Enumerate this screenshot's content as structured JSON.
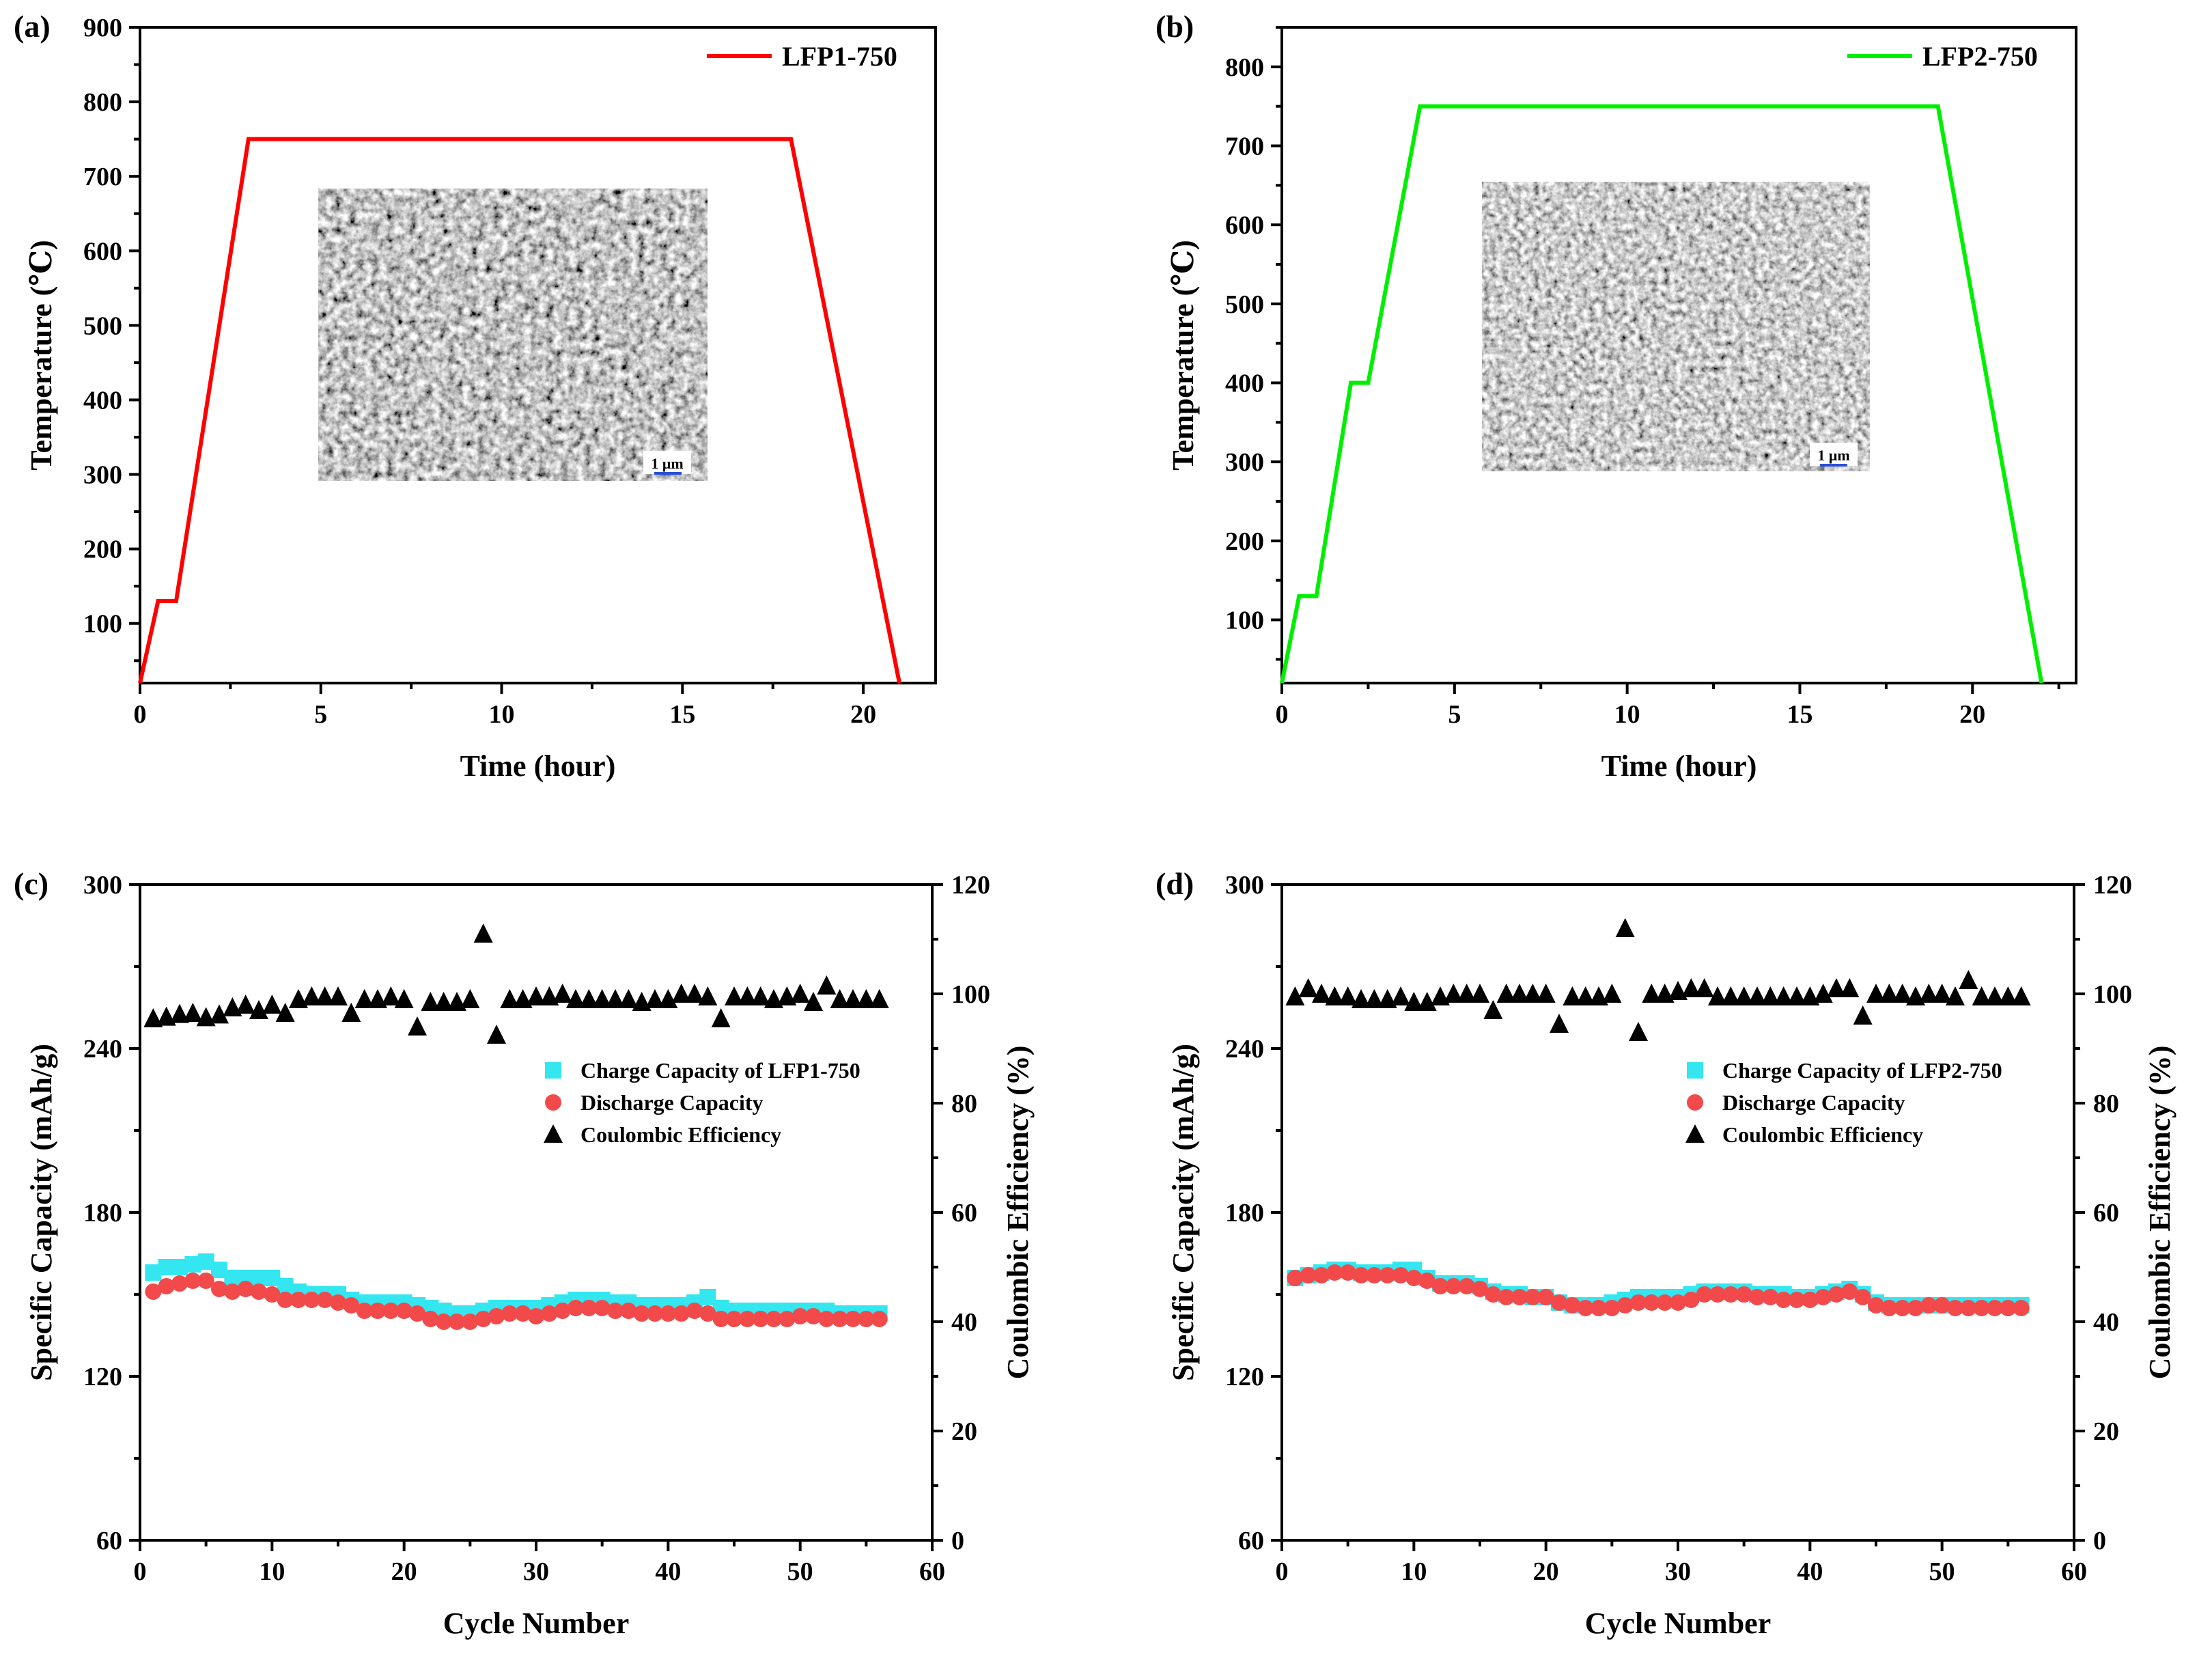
{
  "chart_data": [
    {
      "id": "a",
      "type": "line",
      "panel_label": "(a)",
      "xlabel": "Time (hour)",
      "ylabel": "Temperature (℃)",
      "xlim": [
        0,
        22
      ],
      "ylim": [
        20,
        900
      ],
      "xticks": [
        0,
        5,
        10,
        15,
        20
      ],
      "yticks": [
        100,
        200,
        300,
        400,
        500,
        600,
        700,
        800,
        900
      ],
      "legend_position": "top-right",
      "series": [
        {
          "name": "LFP1-750",
          "color": "#ff0000",
          "x": [
            0,
            0.5,
            1.0,
            3.0,
            18.0,
            21.0
          ],
          "y": [
            20,
            130,
            130,
            750,
            750,
            20
          ]
        }
      ],
      "inset": {
        "description_hidden": true,
        "scale_bar": "1 μm"
      }
    },
    {
      "id": "b",
      "type": "line",
      "panel_label": "(b)",
      "xlabel": "Time (hour)",
      "ylabel": "Temperature (℃)",
      "xlim": [
        0,
        23
      ],
      "ylim": [
        20,
        850
      ],
      "xticks": [
        0,
        5,
        10,
        15,
        20
      ],
      "yticks": [
        100,
        200,
        300,
        400,
        500,
        600,
        700,
        800
      ],
      "legend_position": "top-right",
      "series": [
        {
          "name": "LFP2-750",
          "color": "#00ee00",
          "x": [
            0,
            0.5,
            1.0,
            2.0,
            2.5,
            4.0,
            19.0,
            22.0
          ],
          "y": [
            20,
            130,
            130,
            400,
            400,
            750,
            750,
            20
          ]
        }
      ],
      "inset": {
        "scale_bar": "1 μm"
      }
    },
    {
      "id": "c",
      "type": "scatter",
      "panel_label": "(c)",
      "xlabel": "Cycle Number",
      "ylabel": "Specific Capacity (mAh/g)",
      "y2label": "Coulombic Efficiency (%)",
      "xlim": [
        0,
        60
      ],
      "ylim": [
        60,
        300
      ],
      "y2lim": [
        0,
        120
      ],
      "xticks": [
        0,
        10,
        20,
        30,
        40,
        50,
        60
      ],
      "yticks": [
        60,
        120,
        180,
        240,
        300
      ],
      "y2ticks": [
        0,
        20,
        40,
        60,
        80,
        100,
        120
      ],
      "legend_position": "center-right",
      "series": [
        {
          "name": "Charge Capacity of LFP1-750",
          "marker": "square",
          "color": "#33e6f0",
          "axis": "left",
          "x": [
            1,
            2,
            3,
            4,
            5,
            6,
            7,
            8,
            9,
            10,
            11,
            12,
            13,
            14,
            15,
            16,
            17,
            18,
            19,
            20,
            21,
            22,
            23,
            24,
            25,
            26,
            27,
            28,
            29,
            30,
            31,
            32,
            33,
            34,
            35,
            36,
            37,
            38,
            39,
            40,
            41,
            42,
            43,
            44,
            45,
            46,
            47,
            48,
            49,
            50,
            51,
            52,
            53,
            54,
            55,
            56
          ],
          "values": [
            158,
            160,
            160,
            161,
            162,
            159,
            156,
            156,
            156,
            156,
            153,
            151,
            150,
            150,
            150,
            148,
            147,
            147,
            147,
            147,
            146,
            145,
            144,
            143,
            143,
            144,
            145,
            145,
            145,
            145,
            146,
            147,
            148,
            148,
            148,
            147,
            147,
            146,
            146,
            146,
            146,
            147,
            149,
            145,
            144,
            144,
            144,
            144,
            144,
            144,
            144,
            144,
            143,
            143,
            143,
            143
          ]
        },
        {
          "name": "Discharge Capacity",
          "marker": "circle",
          "color": "#f24a4a",
          "axis": "left",
          "x": [
            1,
            2,
            3,
            4,
            5,
            6,
            7,
            8,
            9,
            10,
            11,
            12,
            13,
            14,
            15,
            16,
            17,
            18,
            19,
            20,
            21,
            22,
            23,
            24,
            25,
            26,
            27,
            28,
            29,
            30,
            31,
            32,
            33,
            34,
            35,
            36,
            37,
            38,
            39,
            40,
            41,
            42,
            43,
            44,
            45,
            46,
            47,
            48,
            49,
            50,
            51,
            52,
            53,
            54,
            55,
            56
          ],
          "values": [
            151,
            153,
            154,
            155,
            155,
            152,
            151,
            152,
            151,
            150,
            148,
            148,
            148,
            148,
            147,
            146,
            144,
            144,
            144,
            144,
            143,
            141,
            140,
            140,
            140,
            141,
            142,
            143,
            143,
            142,
            143,
            144,
            145,
            145,
            145,
            144,
            144,
            143,
            143,
            143,
            143,
            144,
            143,
            141,
            141,
            141,
            141,
            141,
            141,
            142,
            142,
            141,
            141,
            141,
            141,
            141
          ]
        },
        {
          "name": "Coulombic Efficiency",
          "marker": "triangle",
          "color": "#000000",
          "axis": "right",
          "x": [
            1,
            2,
            3,
            4,
            5,
            6,
            7,
            8,
            9,
            10,
            11,
            12,
            13,
            14,
            15,
            16,
            17,
            18,
            19,
            20,
            21,
            22,
            23,
            24,
            25,
            26,
            27,
            28,
            29,
            30,
            31,
            32,
            33,
            34,
            35,
            36,
            37,
            38,
            39,
            40,
            41,
            42,
            43,
            44,
            45,
            46,
            47,
            48,
            49,
            50,
            51,
            52,
            53,
            54,
            55,
            56
          ],
          "values": [
            95.5,
            95.8,
            96.3,
            96.5,
            95.7,
            96.2,
            97.5,
            98,
            97,
            98,
            96.5,
            99,
            99.5,
            99.5,
            99.5,
            96.5,
            99,
            99,
            99.5,
            99,
            94,
            98.5,
            98.5,
            98.5,
            99,
            111,
            92.5,
            99,
            99,
            99.5,
            99.5,
            100,
            99,
            99,
            99,
            99,
            99,
            98.5,
            99,
            99,
            100,
            100,
            99.5,
            95.5,
            99.5,
            99.5,
            99.5,
            99,
            99.5,
            100,
            98.5,
            101.5,
            99,
            99,
            99,
            99
          ]
        }
      ]
    },
    {
      "id": "d",
      "type": "scatter",
      "panel_label": "(d)",
      "xlabel": "Cycle Number",
      "ylabel": "Specific Capacity (mAh/g)",
      "y2label": "Coulombic Efficiency (%)",
      "xlim": [
        0,
        60
      ],
      "ylim": [
        60,
        300
      ],
      "y2lim": [
        0,
        120
      ],
      "xticks": [
        0,
        10,
        20,
        30,
        40,
        50,
        60
      ],
      "yticks": [
        60,
        120,
        180,
        240,
        300
      ],
      "y2ticks": [
        0,
        20,
        40,
        60,
        80,
        100,
        120
      ],
      "legend_position": "center-right",
      "series": [
        {
          "name": "Charge Capacity of LFP2-750",
          "marker": "square",
          "color": "#33e6f0",
          "axis": "left",
          "x": [
            1,
            2,
            3,
            4,
            5,
            6,
            7,
            8,
            9,
            10,
            11,
            12,
            13,
            14,
            15,
            16,
            17,
            18,
            19,
            20,
            21,
            22,
            23,
            24,
            25,
            26,
            27,
            28,
            29,
            30,
            31,
            32,
            33,
            34,
            35,
            36,
            37,
            38,
            39,
            40,
            41,
            42,
            43,
            44,
            45,
            46,
            47,
            48,
            49,
            50,
            51,
            52,
            53,
            54,
            55,
            56
          ],
          "values": [
            156,
            157,
            158,
            159,
            159,
            158,
            158,
            158,
            159,
            159,
            156,
            154,
            154,
            154,
            153,
            151,
            150,
            150,
            149,
            149,
            147,
            146,
            146,
            146,
            147,
            148,
            149,
            149,
            149,
            149,
            150,
            151,
            151,
            151,
            151,
            150,
            150,
            150,
            149,
            149,
            150,
            151,
            152,
            150,
            147,
            146,
            146,
            146,
            146,
            146,
            146,
            146,
            146,
            146,
            146,
            146
          ]
        },
        {
          "name": "Discharge Capacity",
          "marker": "circle",
          "color": "#f24a4a",
          "axis": "left",
          "x": [
            1,
            2,
            3,
            4,
            5,
            6,
            7,
            8,
            9,
            10,
            11,
            12,
            13,
            14,
            15,
            16,
            17,
            18,
            19,
            20,
            21,
            22,
            23,
            24,
            25,
            26,
            27,
            28,
            29,
            30,
            31,
            32,
            33,
            34,
            35,
            36,
            37,
            38,
            39,
            40,
            41,
            42,
            43,
            44,
            45,
            46,
            47,
            48,
            49,
            50,
            51,
            52,
            53,
            54,
            55,
            56
          ],
          "values": [
            156,
            157,
            157,
            158,
            158,
            157,
            157,
            157,
            157,
            156,
            155,
            153,
            153,
            153,
            152,
            150,
            149,
            149,
            149,
            149,
            147,
            146,
            145,
            145,
            145,
            146,
            147,
            147,
            147,
            147,
            148,
            150,
            150,
            150,
            150,
            149,
            149,
            148,
            148,
            148,
            149,
            150,
            151,
            149,
            146,
            145,
            145,
            145,
            146,
            146,
            145,
            145,
            145,
            145,
            145,
            145
          ]
        },
        {
          "name": "Coulombic Efficiency",
          "marker": "triangle",
          "color": "#000000",
          "axis": "right",
          "x": [
            1,
            2,
            3,
            4,
            5,
            6,
            7,
            8,
            9,
            10,
            11,
            12,
            13,
            14,
            15,
            16,
            17,
            18,
            19,
            20,
            21,
            22,
            23,
            24,
            25,
            26,
            27,
            28,
            29,
            30,
            31,
            32,
            33,
            34,
            35,
            36,
            37,
            38,
            39,
            40,
            41,
            42,
            43,
            44,
            45,
            46,
            47,
            48,
            49,
            50,
            51,
            52,
            53,
            54,
            55,
            56
          ],
          "values": [
            99.5,
            101,
            100,
            99.5,
            99.5,
            99,
            99,
            99,
            99.5,
            98.5,
            98.5,
            99.5,
            100,
            100,
            100,
            97,
            100,
            100,
            100,
            100,
            94.5,
            99.5,
            99.5,
            99.5,
            100,
            112,
            93,
            100,
            100,
            100.5,
            101,
            101,
            99.5,
            99.5,
            99.5,
            99.5,
            99.5,
            99.5,
            99.5,
            99.5,
            100,
            101,
            101,
            96,
            100,
            100,
            100,
            99.5,
            100,
            100,
            99.5,
            102.5,
            99.5,
            99.5,
            99.5,
            99.5
          ]
        }
      ]
    }
  ],
  "insets": {
    "a": {
      "scale_bar": "1 μm"
    },
    "b": {
      "scale_bar": "1 μm"
    }
  }
}
